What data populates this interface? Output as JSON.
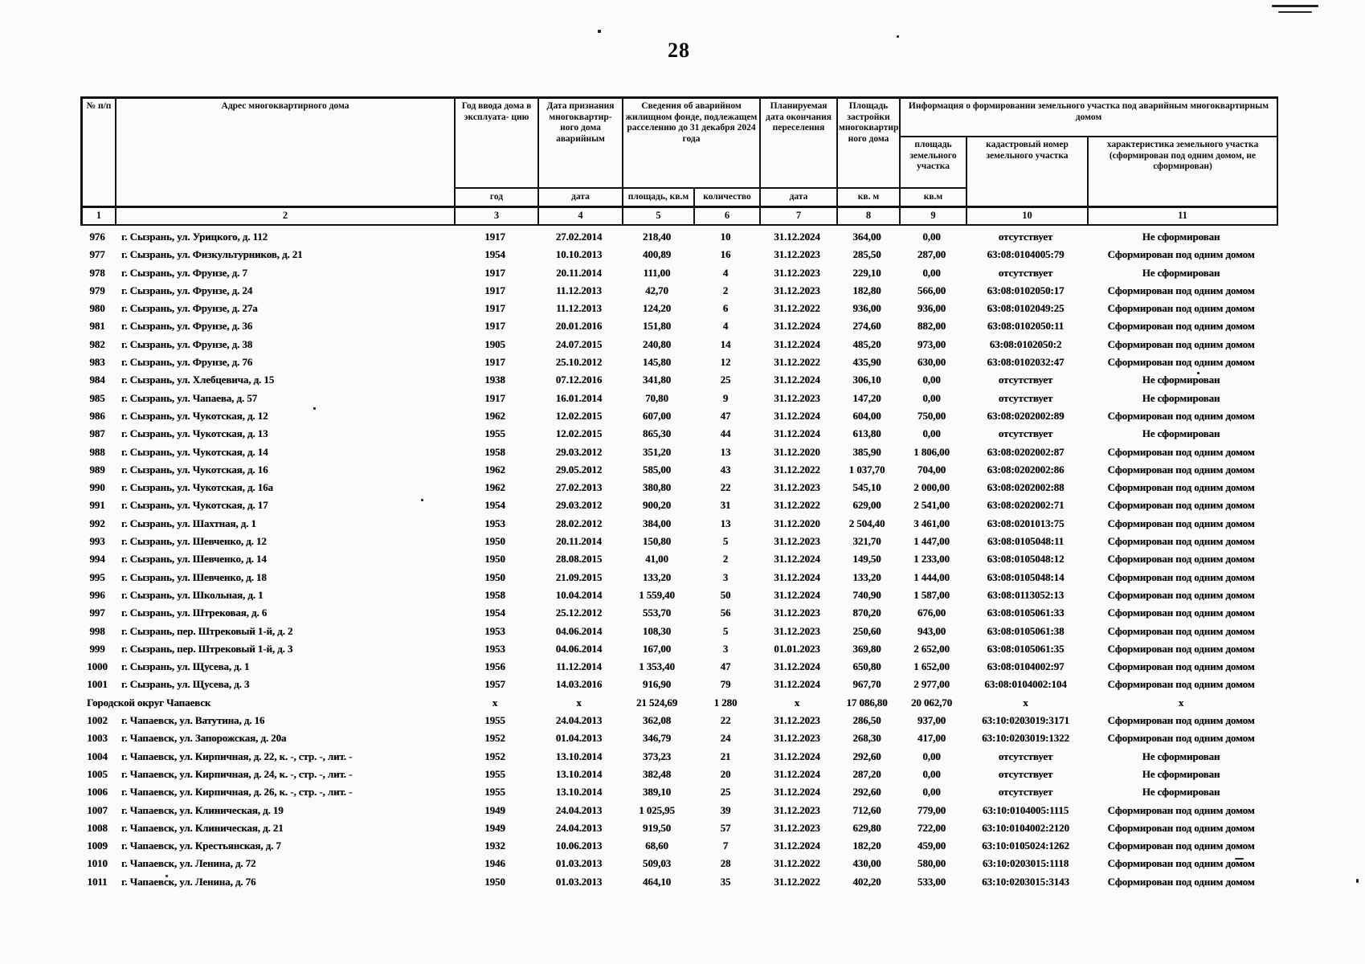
{
  "page": {
    "number": "28"
  },
  "table": {
    "header": {
      "col1": "№ п/п",
      "col2": "Адрес многоквартирного дома",
      "col3": "Год ввода дома в эксплуата- цию",
      "col4": "Дата признания многоквартир- ного дома аварийным",
      "col5_6": "Сведения об аварийном жилищном фонде, подлежащем расселению до 31 декабря 2024 года",
      "col7": "Планируемая дата окончания переселения",
      "col8": "Площадь застройки многоквартир- ного дома",
      "col9_11": "Информация о формировании земельного участка под аварийным многоквартирным домом",
      "col9": "площадь земельного участка",
      "col10": "кадастровый номер земельного участка",
      "col11": "характеристика земельного участка (сформирован под одним домом, не сформирован)",
      "sub_year": "год",
      "sub_date1": "дата",
      "sub_area": "площадь, кв.м",
      "sub_count": "количество",
      "sub_date2": "дата",
      "sub_kvm1": "кв. м",
      "sub_kvm2": "кв.м"
    },
    "number_row": [
      "1",
      "2",
      "3",
      "4",
      "5",
      "6",
      "7",
      "8",
      "9",
      "10",
      "11"
    ],
    "rows": [
      {
        "c": [
          "976",
          "г. Сызрань, ул. Урицкого, д. 112",
          "1917",
          "27.02.2014",
          "218,40",
          "10",
          "31.12.2024",
          "364,00",
          "0,00",
          "отсутствует",
          "Не сформирован"
        ]
      },
      {
        "c": [
          "977",
          "г. Сызрань, ул. Физкультурников, д. 21",
          "1954",
          "10.10.2013",
          "400,89",
          "16",
          "31.12.2023",
          "285,50",
          "287,00",
          "63:08:0104005:79",
          "Сформирован под одним домом"
        ]
      },
      {
        "c": [
          "978",
          "г. Сызрань, ул. Фрунзе, д. 7",
          "1917",
          "20.11.2014",
          "111,00",
          "4",
          "31.12.2023",
          "229,10",
          "0,00",
          "отсутствует",
          "Не сформирован"
        ]
      },
      {
        "c": [
          "979",
          "г. Сызрань, ул. Фрунзе, д. 24",
          "1917",
          "11.12.2013",
          "42,70",
          "2",
          "31.12.2023",
          "182,80",
          "566,00",
          "63:08:0102050:17",
          "Сформирован под одним домом"
        ]
      },
      {
        "c": [
          "980",
          "г. Сызрань, ул. Фрунзе, д. 27а",
          "1917",
          "11.12.2013",
          "124,20",
          "6",
          "31.12.2022",
          "936,00",
          "936,00",
          "63:08:0102049:25",
          "Сформирован под одним домом"
        ]
      },
      {
        "c": [
          "981",
          "г. Сызрань, ул. Фрунзе, д. 36",
          "1917",
          "20.01.2016",
          "151,80",
          "4",
          "31.12.2024",
          "274,60",
          "882,00",
          "63:08:0102050:11",
          "Сформирован под одним домом"
        ]
      },
      {
        "c": [
          "982",
          "г. Сызрань, ул. Фрунзе, д. 38",
          "1905",
          "24.07.2015",
          "240,80",
          "14",
          "31.12.2024",
          "485,20",
          "973,00",
          "63:08:0102050:2",
          "Сформирован под одним домом"
        ]
      },
      {
        "c": [
          "983",
          "г. Сызрань, ул. Фрунзе, д. 76",
          "1917",
          "25.10.2012",
          "145,80",
          "12",
          "31.12.2022",
          "435,90",
          "630,00",
          "63:08:0102032:47",
          "Сформирован под одним домом"
        ]
      },
      {
        "c": [
          "984",
          "г. Сызрань, ул. Хлебцевича, д. 15",
          "1938",
          "07.12.2016",
          "341,80",
          "25",
          "31.12.2024",
          "306,10",
          "0,00",
          "отсутствует",
          "Не сформирован"
        ]
      },
      {
        "c": [
          "985",
          "г. Сызрань, ул. Чапаева, д. 57",
          "1917",
          "16.01.2014",
          "70,80",
          "9",
          "31.12.2023",
          "147,20",
          "0,00",
          "отсутствует",
          "Не сформирован"
        ]
      },
      {
        "c": [
          "986",
          "г. Сызрань, ул. Чукотская, д. 12",
          "1962",
          "12.02.2015",
          "607,00",
          "47",
          "31.12.2024",
          "604,00",
          "750,00",
          "63:08:0202002:89",
          "Сформирован под одним домом"
        ]
      },
      {
        "c": [
          "987",
          "г. Сызрань, ул. Чукотская, д. 13",
          "1955",
          "12.02.2015",
          "865,30",
          "44",
          "31.12.2024",
          "613,80",
          "0,00",
          "отсутствует",
          "Не сформирован"
        ]
      },
      {
        "c": [
          "988",
          "г. Сызрань, ул. Чукотская, д. 14",
          "1958",
          "29.03.2012",
          "351,20",
          "13",
          "31.12.2020",
          "385,90",
          "1 806,00",
          "63:08:0202002:87",
          "Сформирован под одним домом"
        ]
      },
      {
        "c": [
          "989",
          "г. Сызрань, ул. Чукотская, д. 16",
          "1962",
          "29.05.2012",
          "585,00",
          "43",
          "31.12.2022",
          "1 037,70",
          "704,00",
          "63:08:0202002:86",
          "Сформирован под одним домом"
        ]
      },
      {
        "c": [
          "990",
          "г. Сызрань, ул. Чукотская, д. 16а",
          "1962",
          "27.02.2013",
          "380,80",
          "22",
          "31.12.2023",
          "545,10",
          "2 000,00",
          "63:08:0202002:88",
          "Сформирован под одним домом"
        ]
      },
      {
        "c": [
          "991",
          "г. Сызрань, ул. Чукотская, д. 17",
          "1954",
          "29.03.2012",
          "900,20",
          "31",
          "31.12.2022",
          "629,00",
          "2 541,00",
          "63:08:0202002:71",
          "Сформирован под одним домом"
        ]
      },
      {
        "c": [
          "992",
          "г. Сызрань, ул. Шахтная, д. 1",
          "1953",
          "28.02.2012",
          "384,00",
          "13",
          "31.12.2020",
          "2 504,40",
          "3 461,00",
          "63:08:0201013:75",
          "Сформирован под одним домом"
        ]
      },
      {
        "c": [
          "993",
          "г. Сызрань, ул. Шевченко, д. 12",
          "1950",
          "20.11.2014",
          "150,80",
          "5",
          "31.12.2023",
          "321,70",
          "1 447,00",
          "63:08:0105048:11",
          "Сформирован под одним домом"
        ]
      },
      {
        "c": [
          "994",
          "г. Сызрань, ул. Шевченко, д. 14",
          "1950",
          "28.08.2015",
          "41,00",
          "2",
          "31.12.2024",
          "149,50",
          "1 233,00",
          "63:08:0105048:12",
          "Сформирован под одним домом"
        ]
      },
      {
        "c": [
          "995",
          "г. Сызрань, ул. Шевченко, д. 18",
          "1950",
          "21.09.2015",
          "133,20",
          "3",
          "31.12.2024",
          "133,20",
          "1 444,00",
          "63:08:0105048:14",
          "Сформирован под одним домом"
        ]
      },
      {
        "c": [
          "996",
          "г. Сызрань, ул. Школьная, д. 1",
          "1958",
          "10.04.2014",
          "1 559,40",
          "50",
          "31.12.2024",
          "740,90",
          "1 587,00",
          "63:08:0113052:13",
          "Сформирован под одним домом"
        ]
      },
      {
        "c": [
          "997",
          "г. Сызрань, ул. Штрековая, д. 6",
          "1954",
          "25.12.2012",
          "553,70",
          "56",
          "31.12.2023",
          "870,20",
          "676,00",
          "63:08:0105061:33",
          "Сформирован под одним домом"
        ]
      },
      {
        "c": [
          "998",
          "г. Сызрань, пер. Штрековый 1-й, д. 2",
          "1953",
          "04.06.2014",
          "108,30",
          "5",
          "31.12.2023",
          "250,60",
          "943,00",
          "63:08:0105061:38",
          "Сформирован под одним домом"
        ]
      },
      {
        "c": [
          "999",
          "г. Сызрань, пер. Штрековый 1-й, д. 3",
          "1953",
          "04.06.2014",
          "167,00",
          "3",
          "01.01.2023",
          "369,80",
          "2 652,00",
          "63:08:0105061:35",
          "Сформирован под одним домом"
        ]
      },
      {
        "c": [
          "1000",
          "г. Сызрань, ул. Щусева, д. 1",
          "1956",
          "11.12.2014",
          "1 353,40",
          "47",
          "31.12.2024",
          "650,80",
          "1 652,00",
          "63:08:0104002:97",
          "Сформирован под одним домом"
        ]
      },
      {
        "c": [
          "1001",
          "г. Сызрань, ул. Щусева, д. 3",
          "1957",
          "14.03.2016",
          "916,90",
          "79",
          "31.12.2024",
          "967,70",
          "2 977,00",
          "63:08:0104002:104",
          "Сформирован под одним домом"
        ]
      },
      {
        "section": true,
        "c": [
          "",
          "Городской округ Чапаевск",
          "x",
          "x",
          "21 524,69",
          "1 280",
          "x",
          "17 086,80",
          "20 062,70",
          "x",
          "x"
        ]
      },
      {
        "c": [
          "1002",
          "г. Чапаевск, ул. Ватутина, д. 16",
          "1955",
          "24.04.2013",
          "362,08",
          "22",
          "31.12.2023",
          "286,50",
          "937,00",
          "63:10:0203019:3171",
          "Сформирован под одним домом"
        ]
      },
      {
        "c": [
          "1003",
          "г. Чапаевск, ул. Запорожская, д. 20а",
          "1952",
          "01.04.2013",
          "346,79",
          "24",
          "31.12.2023",
          "268,30",
          "417,00",
          "63:10:0203019:1322",
          "Сформирован под одним домом"
        ]
      },
      {
        "c": [
          "1004",
          "г. Чапаевск, ул. Кирпичная, д. 22, к. -, стр. -, лит. -",
          "1952",
          "13.10.2014",
          "373,23",
          "21",
          "31.12.2024",
          "292,60",
          "0,00",
          "отсутствует",
          "Не сформирован"
        ]
      },
      {
        "c": [
          "1005",
          "г. Чапаевск, ул. Кирпичная, д. 24, к. -, стр. -, лит. -",
          "1955",
          "13.10.2014",
          "382,48",
          "20",
          "31.12.2024",
          "287,20",
          "0,00",
          "отсутствует",
          "Не сформирован"
        ]
      },
      {
        "c": [
          "1006",
          "г. Чапаевск, ул. Кирпичная, д. 26, к. -, стр. -, лит. -",
          "1955",
          "13.10.2014",
          "389,10",
          "25",
          "31.12.2024",
          "292,60",
          "0,00",
          "отсутствует",
          "Не сформирован"
        ]
      },
      {
        "c": [
          "1007",
          "г. Чапаевск, ул. Клиническая, д. 19",
          "1949",
          "24.04.2013",
          "1 025,95",
          "39",
          "31.12.2023",
          "712,60",
          "779,00",
          "63:10:0104005:1115",
          "Сформирован под одним домом"
        ]
      },
      {
        "c": [
          "1008",
          "г. Чапаевск, ул. Клиническая, д. 21",
          "1949",
          "24.04.2013",
          "919,50",
          "57",
          "31.12.2023",
          "629,80",
          "722,00",
          "63:10:0104002:2120",
          "Сформирован под одним домом"
        ]
      },
      {
        "c": [
          "1009",
          "г. Чапаевск, ул. Крестьянская, д. 7",
          "1932",
          "10.06.2013",
          "68,60",
          "7",
          "31.12.2024",
          "182,20",
          "459,00",
          "63:10:0105024:1262",
          "Сформирован под одним домом"
        ]
      },
      {
        "c": [
          "1010",
          "г. Чапаевск, ул. Ленина, д. 72",
          "1946",
          "01.03.2013",
          "509,03",
          "28",
          "31.12.2022",
          "430,00",
          "580,00",
          "63:10:0203015:1118",
          "Сформирован под одним домом"
        ]
      },
      {
        "c": [
          "1011",
          "г. Чапаевск, ул. Ленина, д. 76",
          "1950",
          "01.03.2013",
          "464,10",
          "35",
          "31.12.2022",
          "402,20",
          "533,00",
          "63:10:0203015:3143",
          "Сформирован под одним домом"
        ]
      }
    ]
  }
}
